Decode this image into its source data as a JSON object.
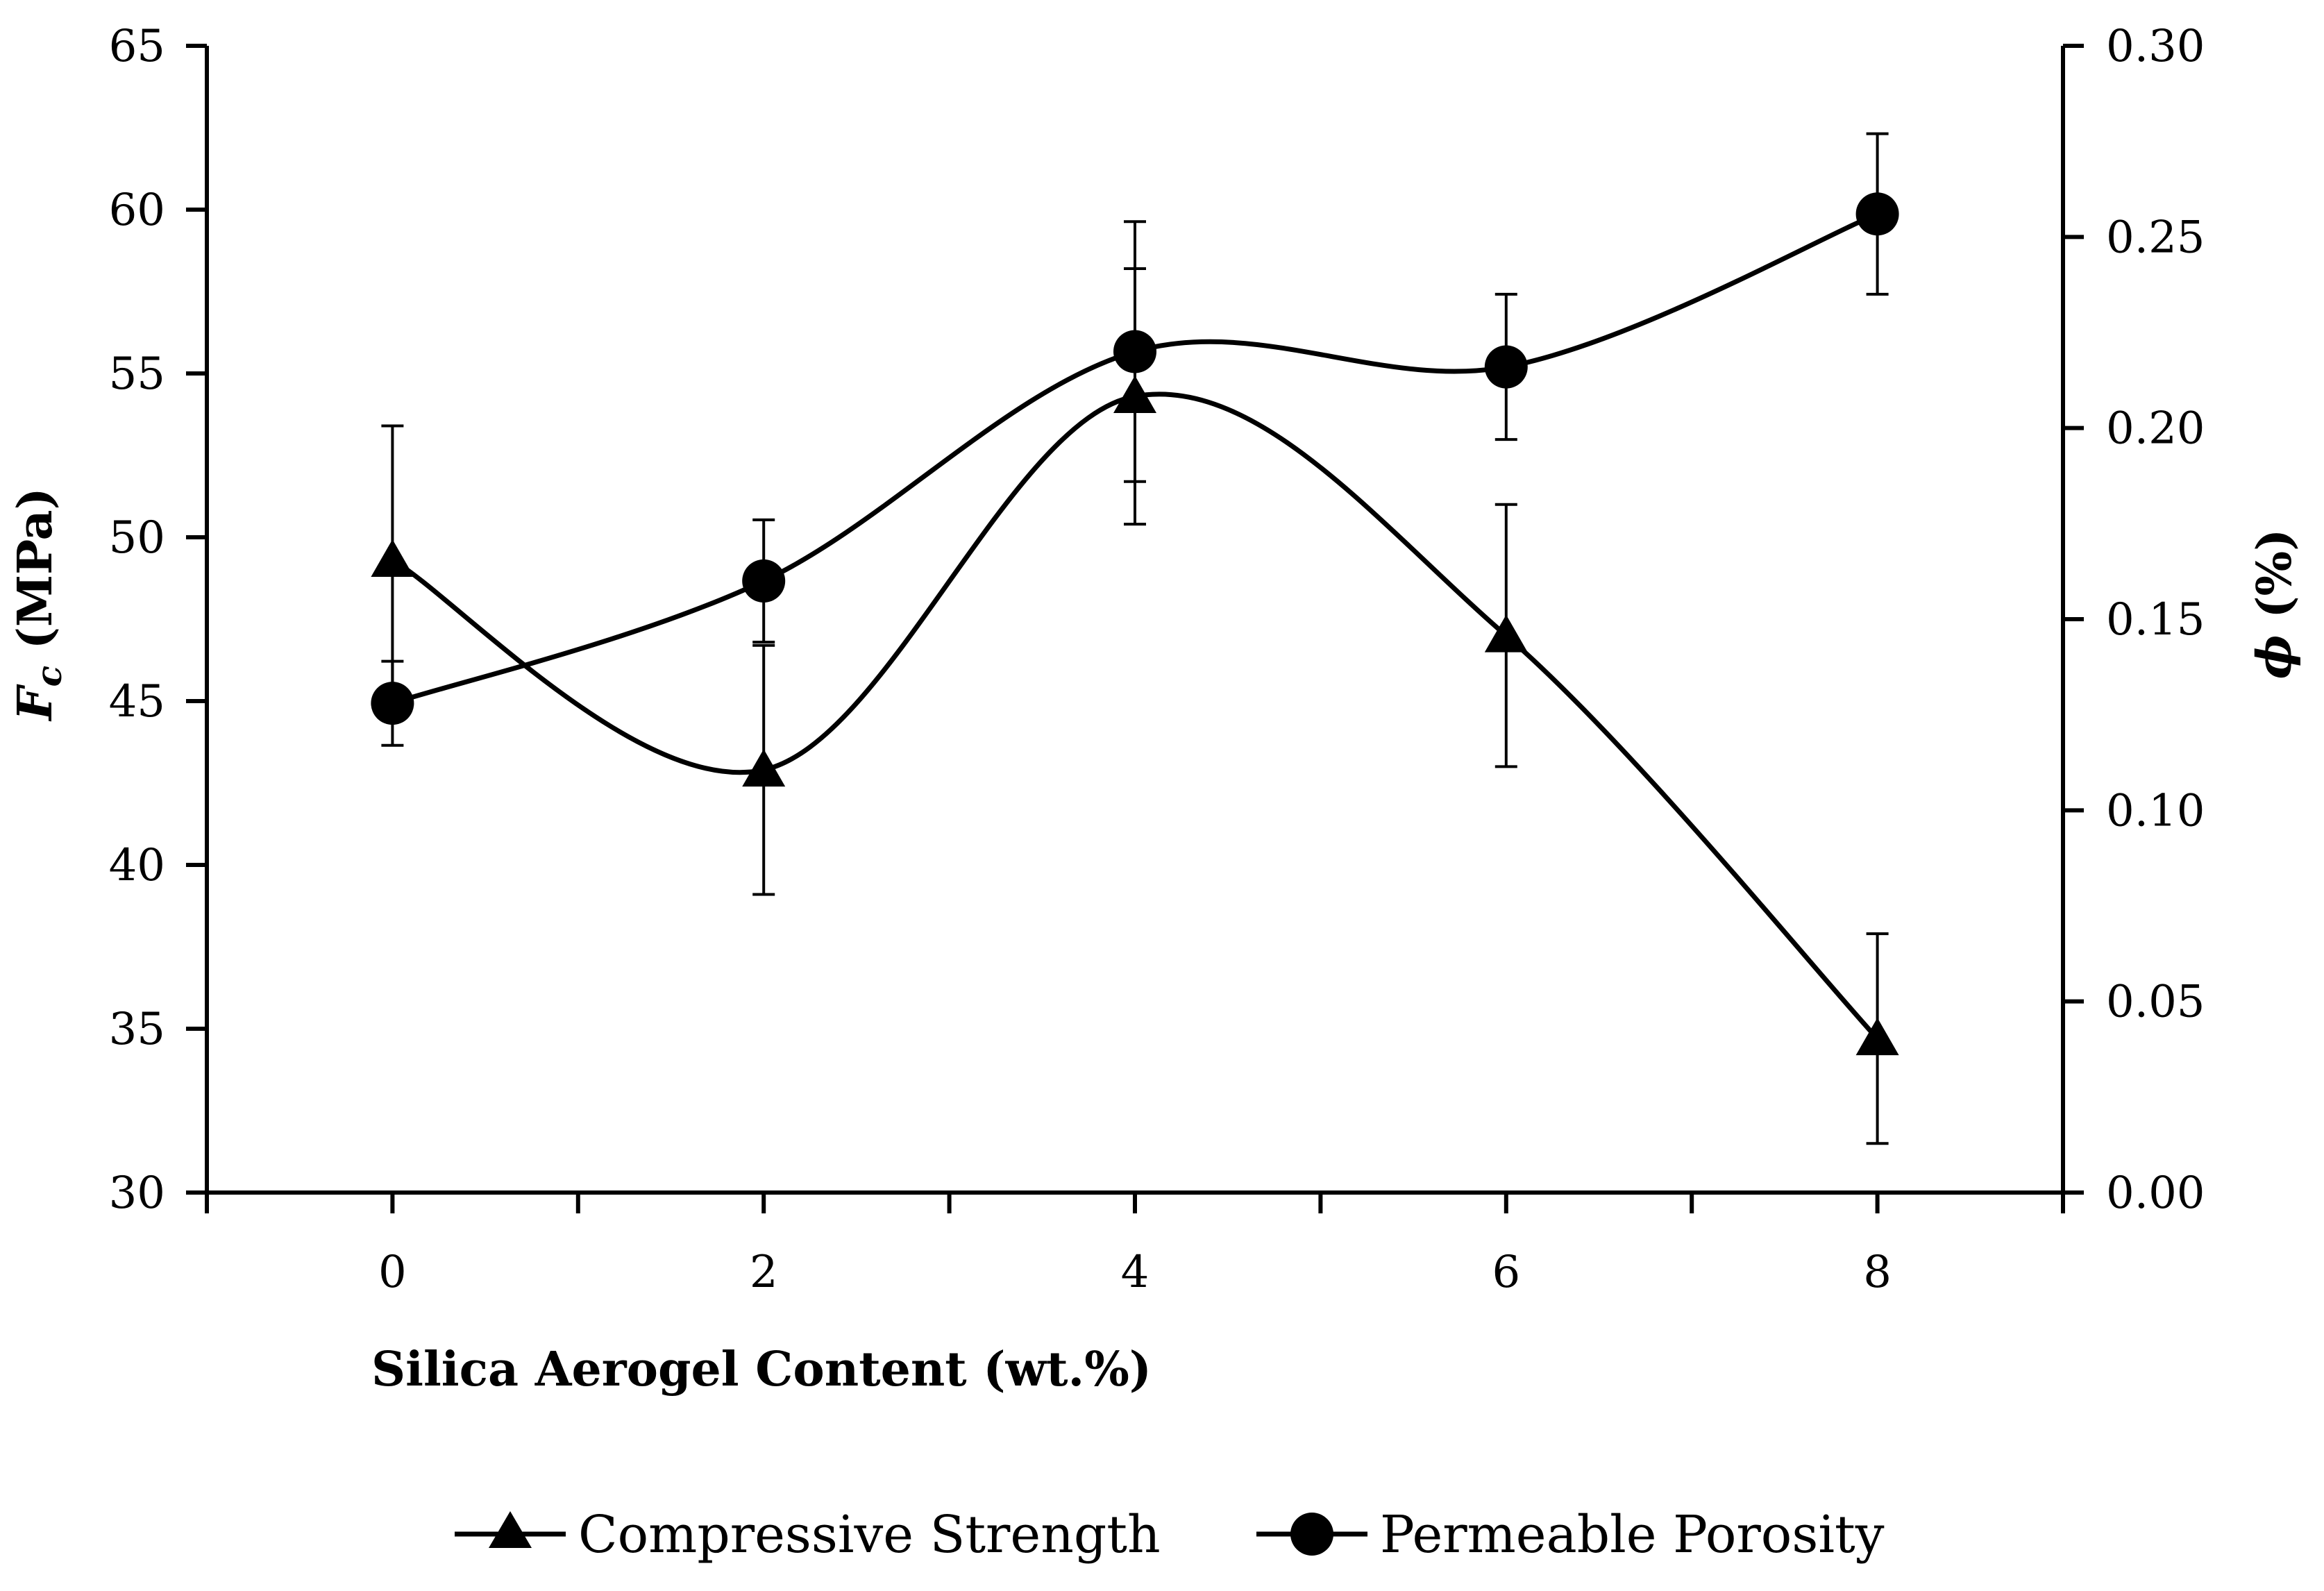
{
  "chart_data": {
    "type": "line",
    "title": "",
    "xlabel": "Silica Aerogel Content (wt.%)",
    "ylabel": {
      "main": "F",
      "sub": "c",
      "rest": " (MPa)"
    },
    "y2label": {
      "symbol": "ϕ",
      "rest": " (%)"
    },
    "x": [
      0,
      2,
      4,
      6,
      8
    ],
    "x_ticks": [
      "0",
      "2",
      "4",
      "6",
      "8"
    ],
    "xlim": [
      -1,
      9
    ],
    "ylim": [
      30,
      65
    ],
    "y_ticks": [
      "30",
      "35",
      "40",
      "45",
      "50",
      "55",
      "60",
      "65"
    ],
    "y2lim": [
      0,
      0.3
    ],
    "y2_ticks": [
      "0.00",
      "0.05",
      "0.10",
      "0.15",
      "0.20",
      "0.25",
      "0.30"
    ],
    "grid": false,
    "legend_position": "bottom-center",
    "series": [
      {
        "name": "Compressive Strength",
        "axis": "left",
        "marker": "triangle",
        "values": [
          49.3,
          42.9,
          54.3,
          47.0,
          34.7
        ],
        "errors": [
          4.1,
          3.8,
          3.9,
          4.0,
          3.2
        ]
      },
      {
        "name": "Permeable Porosity",
        "axis": "right",
        "marker": "circle",
        "values": [
          0.128,
          0.16,
          0.22,
          0.216,
          0.256
        ],
        "errors": [
          0.011,
          0.016,
          0.034,
          0.019,
          0.021
        ]
      }
    ]
  }
}
